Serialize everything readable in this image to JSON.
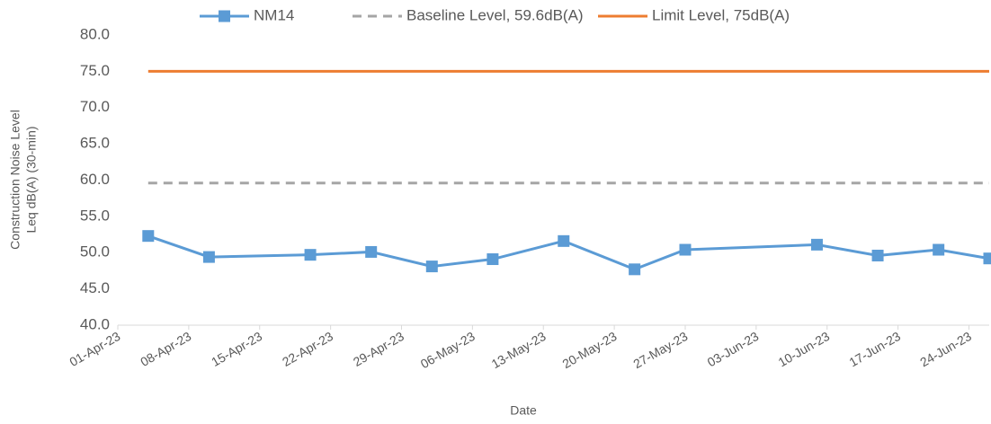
{
  "chart_data": {
    "type": "line",
    "x_label": "Date",
    "y_label": [
      "Construction Noise Level",
      "Leq dB(A) (30-min)"
    ],
    "x": [
      "2023-04-04",
      "2023-04-10",
      "2023-04-20",
      "2023-04-26",
      "2023-05-02",
      "2023-05-08",
      "2023-05-15",
      "2023-05-22",
      "2023-05-27",
      "2023-06-09",
      "2023-06-15",
      "2023-06-21",
      "2023-06-26"
    ],
    "series": [
      {
        "name": "NM14",
        "color": "#5b9bd5",
        "style": "marker",
        "values": [
          52.3,
          49.4,
          49.7,
          50.1,
          48.1,
          49.1,
          51.6,
          47.7,
          50.4,
          51.1,
          49.6,
          50.4,
          49.2
        ]
      },
      {
        "name": "Baseline Level, 59.6dB(A)",
        "color": "#a5a5a5",
        "style": "dashed",
        "values": [
          59.6,
          59.6,
          59.6,
          59.6,
          59.6,
          59.6,
          59.6,
          59.6,
          59.6,
          59.6,
          59.6,
          59.6,
          59.6
        ]
      },
      {
        "name": "Limit Level, 75dB(A)",
        "color": "#ed7d31",
        "style": "solid",
        "values": [
          75,
          75,
          75,
          75,
          75,
          75,
          75,
          75,
          75,
          75,
          75,
          75,
          75
        ]
      }
    ],
    "xlim": [
      "2023-04-01",
      "2023-06-26"
    ],
    "xticks": [
      {
        "value": "2023-04-01",
        "label": "01-Apr-23"
      },
      {
        "value": "2023-04-08",
        "label": "08-Apr-23"
      },
      {
        "value": "2023-04-15",
        "label": "15-Apr-23"
      },
      {
        "value": "2023-04-22",
        "label": "22-Apr-23"
      },
      {
        "value": "2023-04-29",
        "label": "29-Apr-23"
      },
      {
        "value": "2023-05-06",
        "label": "06-May-23"
      },
      {
        "value": "2023-05-13",
        "label": "13-May-23"
      },
      {
        "value": "2023-05-20",
        "label": "20-May-23"
      },
      {
        "value": "2023-05-27",
        "label": "27-May-23"
      },
      {
        "value": "2023-06-03",
        "label": "03-Jun-23"
      },
      {
        "value": "2023-06-10",
        "label": "10-Jun-23"
      },
      {
        "value": "2023-06-17",
        "label": "17-Jun-23"
      },
      {
        "value": "2023-06-24",
        "label": "24-Jun-23"
      }
    ],
    "ylim": [
      40,
      80
    ],
    "yticks": [
      {
        "value": 40,
        "label": "40.0"
      },
      {
        "value": 45,
        "label": "45.0"
      },
      {
        "value": 50,
        "label": "50.0"
      },
      {
        "value": 55,
        "label": "55.0"
      },
      {
        "value": 60,
        "label": "60.0"
      },
      {
        "value": 65,
        "label": "65.0"
      },
      {
        "value": 70,
        "label": "70.0"
      },
      {
        "value": 75,
        "label": "75.0"
      },
      {
        "value": 80,
        "label": "80.0"
      }
    ],
    "legend": "top"
  }
}
